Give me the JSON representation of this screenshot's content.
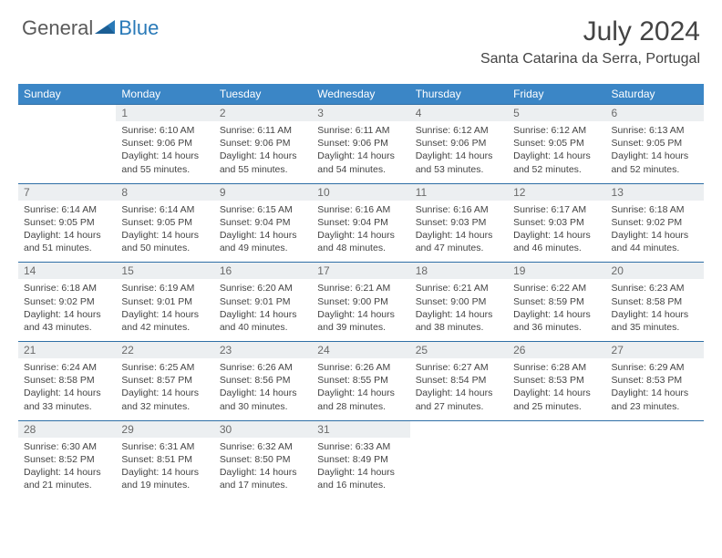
{
  "logo": {
    "text1": "General",
    "text2": "Blue"
  },
  "title": "July 2024",
  "location": "Santa Catarina da Serra, Portugal",
  "colors": {
    "header_bg": "#3b86c6",
    "header_text": "#ffffff",
    "daynum_bg": "#eceff1",
    "border": "#2f6fa6",
    "body_text": "#444444",
    "logo_gray": "#5a5a5a",
    "logo_blue": "#2a7ab8"
  },
  "weekdays": [
    "Sunday",
    "Monday",
    "Tuesday",
    "Wednesday",
    "Thursday",
    "Friday",
    "Saturday"
  ],
  "weeks": [
    [
      null,
      {
        "n": "1",
        "sr": "6:10 AM",
        "ss": "9:06 PM",
        "dl": "14 hours and 55 minutes."
      },
      {
        "n": "2",
        "sr": "6:11 AM",
        "ss": "9:06 PM",
        "dl": "14 hours and 55 minutes."
      },
      {
        "n": "3",
        "sr": "6:11 AM",
        "ss": "9:06 PM",
        "dl": "14 hours and 54 minutes."
      },
      {
        "n": "4",
        "sr": "6:12 AM",
        "ss": "9:06 PM",
        "dl": "14 hours and 53 minutes."
      },
      {
        "n": "5",
        "sr": "6:12 AM",
        "ss": "9:05 PM",
        "dl": "14 hours and 52 minutes."
      },
      {
        "n": "6",
        "sr": "6:13 AM",
        "ss": "9:05 PM",
        "dl": "14 hours and 52 minutes."
      }
    ],
    [
      {
        "n": "7",
        "sr": "6:14 AM",
        "ss": "9:05 PM",
        "dl": "14 hours and 51 minutes."
      },
      {
        "n": "8",
        "sr": "6:14 AM",
        "ss": "9:05 PM",
        "dl": "14 hours and 50 minutes."
      },
      {
        "n": "9",
        "sr": "6:15 AM",
        "ss": "9:04 PM",
        "dl": "14 hours and 49 minutes."
      },
      {
        "n": "10",
        "sr": "6:16 AM",
        "ss": "9:04 PM",
        "dl": "14 hours and 48 minutes."
      },
      {
        "n": "11",
        "sr": "6:16 AM",
        "ss": "9:03 PM",
        "dl": "14 hours and 47 minutes."
      },
      {
        "n": "12",
        "sr": "6:17 AM",
        "ss": "9:03 PM",
        "dl": "14 hours and 46 minutes."
      },
      {
        "n": "13",
        "sr": "6:18 AM",
        "ss": "9:02 PM",
        "dl": "14 hours and 44 minutes."
      }
    ],
    [
      {
        "n": "14",
        "sr": "6:18 AM",
        "ss": "9:02 PM",
        "dl": "14 hours and 43 minutes."
      },
      {
        "n": "15",
        "sr": "6:19 AM",
        "ss": "9:01 PM",
        "dl": "14 hours and 42 minutes."
      },
      {
        "n": "16",
        "sr": "6:20 AM",
        "ss": "9:01 PM",
        "dl": "14 hours and 40 minutes."
      },
      {
        "n": "17",
        "sr": "6:21 AM",
        "ss": "9:00 PM",
        "dl": "14 hours and 39 minutes."
      },
      {
        "n": "18",
        "sr": "6:21 AM",
        "ss": "9:00 PM",
        "dl": "14 hours and 38 minutes."
      },
      {
        "n": "19",
        "sr": "6:22 AM",
        "ss": "8:59 PM",
        "dl": "14 hours and 36 minutes."
      },
      {
        "n": "20",
        "sr": "6:23 AM",
        "ss": "8:58 PM",
        "dl": "14 hours and 35 minutes."
      }
    ],
    [
      {
        "n": "21",
        "sr": "6:24 AM",
        "ss": "8:58 PM",
        "dl": "14 hours and 33 minutes."
      },
      {
        "n": "22",
        "sr": "6:25 AM",
        "ss": "8:57 PM",
        "dl": "14 hours and 32 minutes."
      },
      {
        "n": "23",
        "sr": "6:26 AM",
        "ss": "8:56 PM",
        "dl": "14 hours and 30 minutes."
      },
      {
        "n": "24",
        "sr": "6:26 AM",
        "ss": "8:55 PM",
        "dl": "14 hours and 28 minutes."
      },
      {
        "n": "25",
        "sr": "6:27 AM",
        "ss": "8:54 PM",
        "dl": "14 hours and 27 minutes."
      },
      {
        "n": "26",
        "sr": "6:28 AM",
        "ss": "8:53 PM",
        "dl": "14 hours and 25 minutes."
      },
      {
        "n": "27",
        "sr": "6:29 AM",
        "ss": "8:53 PM",
        "dl": "14 hours and 23 minutes."
      }
    ],
    [
      {
        "n": "28",
        "sr": "6:30 AM",
        "ss": "8:52 PM",
        "dl": "14 hours and 21 minutes."
      },
      {
        "n": "29",
        "sr": "6:31 AM",
        "ss": "8:51 PM",
        "dl": "14 hours and 19 minutes."
      },
      {
        "n": "30",
        "sr": "6:32 AM",
        "ss": "8:50 PM",
        "dl": "14 hours and 17 minutes."
      },
      {
        "n": "31",
        "sr": "6:33 AM",
        "ss": "8:49 PM",
        "dl": "14 hours and 16 minutes."
      },
      null,
      null,
      null
    ]
  ],
  "labels": {
    "sunrise": "Sunrise:",
    "sunset": "Sunset:",
    "daylight": "Daylight:"
  }
}
